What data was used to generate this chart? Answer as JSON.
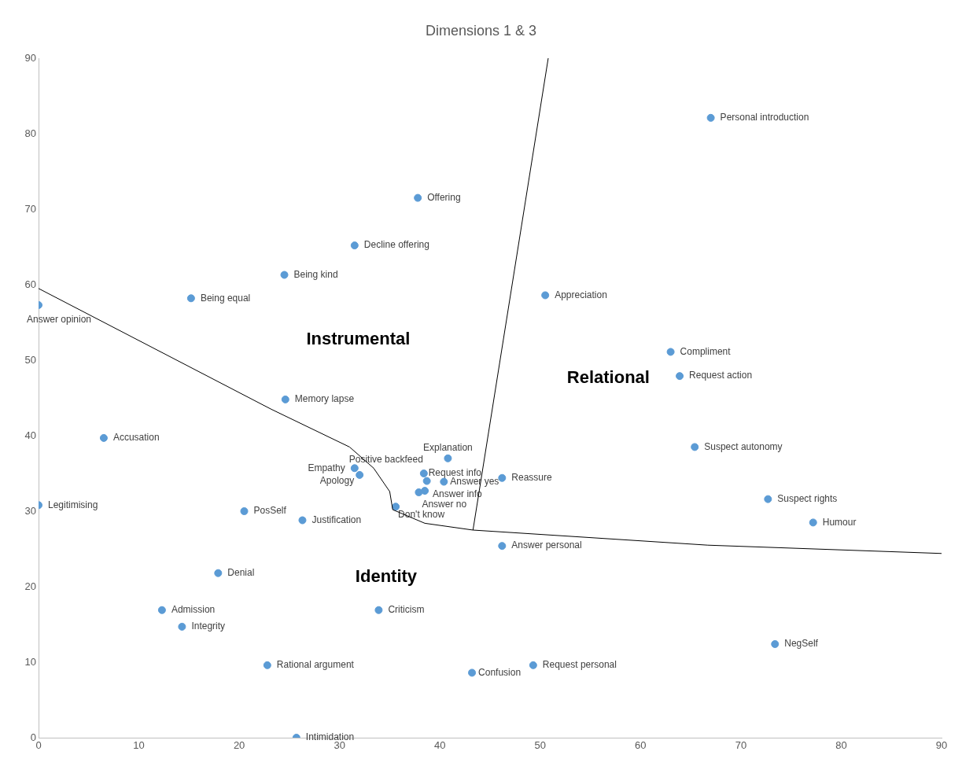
{
  "chart_data": {
    "type": "scatter",
    "title": "Dimensions 1 & 3",
    "xlim": [
      0,
      90
    ],
    "ylim": [
      0,
      90
    ],
    "xticks": [
      0,
      10,
      20,
      30,
      40,
      50,
      60,
      70,
      80,
      90
    ],
    "yticks": [
      0,
      10,
      20,
      30,
      40,
      50,
      60,
      70,
      80,
      90
    ],
    "grid": false,
    "legend": false,
    "marker": "circle",
    "annotations": [
      "Instrumental",
      "Relational",
      "Identity"
    ],
    "series": [
      {
        "type": "line",
        "color": "#000000",
        "marker": "none",
        "x": [
          0,
          23.2,
          31.0,
          33.4,
          35.0,
          35.3,
          38.5,
          43.3,
          66.7,
          90
        ],
        "values": [
          59.5,
          43.5,
          38.5,
          35.7,
          32.6,
          30.2,
          28.4,
          27.5,
          25.5,
          24.4
        ]
      },
      {
        "type": "line",
        "color": "#000000",
        "marker": "none",
        "x": [
          43.3,
          50.8
        ],
        "values": [
          27.5,
          90
        ]
      },
      {
        "name": "Personal introduction",
        "color": "#5b9bd5",
        "x": [
          67.0
        ],
        "values": [
          82.1
        ]
      },
      {
        "name": "Offering",
        "color": "#5b9bd5",
        "x": [
          37.8
        ],
        "values": [
          71.5
        ]
      },
      {
        "name": "Decline offering",
        "color": "#5b9bd5",
        "x": [
          31.5
        ],
        "values": [
          65.2
        ]
      },
      {
        "name": "Being kind",
        "color": "#5b9bd5",
        "x": [
          24.5
        ],
        "values": [
          61.3
        ]
      },
      {
        "name": "Being equal",
        "color": "#5b9bd5",
        "x": [
          15.2
        ],
        "values": [
          58.2
        ]
      },
      {
        "name": "Answer opinion",
        "color": "#5b9bd5",
        "x": [
          0
        ],
        "values": [
          57.3
        ]
      },
      {
        "name": "Appreciation",
        "color": "#5b9bd5",
        "x": [
          50.5
        ],
        "values": [
          58.6
        ]
      },
      {
        "name": "Compliment",
        "color": "#5b9bd5",
        "x": [
          63.0
        ],
        "values": [
          51.1
        ]
      },
      {
        "name": "Request action",
        "color": "#5b9bd5",
        "x": [
          63.9
        ],
        "values": [
          47.9
        ]
      },
      {
        "name": "Memory lapse",
        "color": "#5b9bd5",
        "x": [
          24.6
        ],
        "values": [
          44.8
        ]
      },
      {
        "name": "Accusation",
        "color": "#5b9bd5",
        "x": [
          6.5
        ],
        "values": [
          39.7
        ]
      },
      {
        "name": "Suspect autonomy",
        "color": "#5b9bd5",
        "x": [
          65.4
        ],
        "values": [
          38.5
        ]
      },
      {
        "name": "Explanation",
        "color": "#5b9bd5",
        "x": [
          40.8
        ],
        "values": [
          37.0
        ]
      },
      {
        "name": "Empathy",
        "color": "#5b9bd5",
        "x": [
          31.5
        ],
        "values": [
          35.7
        ]
      },
      {
        "name": "Apology",
        "color": "#5b9bd5",
        "x": [
          32.0
        ],
        "values": [
          34.8
        ]
      },
      {
        "name": "Positive backfeed",
        "color": "#5b9bd5",
        "x": [
          38.4
        ],
        "values": [
          35.0
        ]
      },
      {
        "name": "Request info",
        "color": "#5b9bd5",
        "x": [
          38.7
        ],
        "values": [
          34.0
        ]
      },
      {
        "name": "Answer yes",
        "color": "#5b9bd5",
        "x": [
          40.4
        ],
        "values": [
          33.9
        ]
      },
      {
        "name": "Answer info",
        "color": "#5b9bd5",
        "x": [
          38.5
        ],
        "values": [
          32.7
        ]
      },
      {
        "name": "Answer no",
        "color": "#5b9bd5",
        "x": [
          37.9
        ],
        "values": [
          32.5
        ]
      },
      {
        "name": "Don't know",
        "color": "#5b9bd5",
        "x": [
          35.6
        ],
        "values": [
          30.6
        ]
      },
      {
        "name": "Reassure",
        "color": "#5b9bd5",
        "x": [
          46.2
        ],
        "values": [
          34.4
        ]
      },
      {
        "name": "Legitimising",
        "color": "#5b9bd5",
        "x": [
          0
        ],
        "values": [
          30.8
        ]
      },
      {
        "name": "PosSelf",
        "color": "#5b9bd5",
        "x": [
          20.5
        ],
        "values": [
          30.0
        ]
      },
      {
        "name": "Justification",
        "color": "#5b9bd5",
        "x": [
          26.3
        ],
        "values": [
          28.8
        ]
      },
      {
        "name": "Suspect rights",
        "color": "#5b9bd5",
        "x": [
          72.7
        ],
        "values": [
          31.6
        ]
      },
      {
        "name": "Humour",
        "color": "#5b9bd5",
        "x": [
          77.2
        ],
        "values": [
          28.5
        ]
      },
      {
        "name": "Answer personal",
        "color": "#5b9bd5",
        "x": [
          46.2
        ],
        "values": [
          25.4
        ]
      },
      {
        "name": "Denial",
        "color": "#5b9bd5",
        "x": [
          17.9
        ],
        "values": [
          21.8
        ]
      },
      {
        "name": "Admission",
        "color": "#5b9bd5",
        "x": [
          12.3
        ],
        "values": [
          16.9
        ]
      },
      {
        "name": "Integrity",
        "color": "#5b9bd5",
        "x": [
          14.3
        ],
        "values": [
          14.7
        ]
      },
      {
        "name": "Criticism",
        "color": "#5b9bd5",
        "x": [
          33.9
        ],
        "values": [
          16.9
        ]
      },
      {
        "name": "NegSelf",
        "color": "#5b9bd5",
        "x": [
          73.4
        ],
        "values": [
          12.4
        ]
      },
      {
        "name": "Rational argument",
        "color": "#5b9bd5",
        "x": [
          22.8
        ],
        "values": [
          9.6
        ]
      },
      {
        "name": "Confusion",
        "color": "#5b9bd5",
        "x": [
          43.2
        ],
        "values": [
          8.6
        ]
      },
      {
        "name": "Request personal",
        "color": "#5b9bd5",
        "x": [
          49.3
        ],
        "values": [
          9.6
        ]
      },
      {
        "name": "Intimidation",
        "color": "#5b9bd5",
        "x": [
          25.7
        ],
        "values": [
          0
        ]
      }
    ]
  }
}
